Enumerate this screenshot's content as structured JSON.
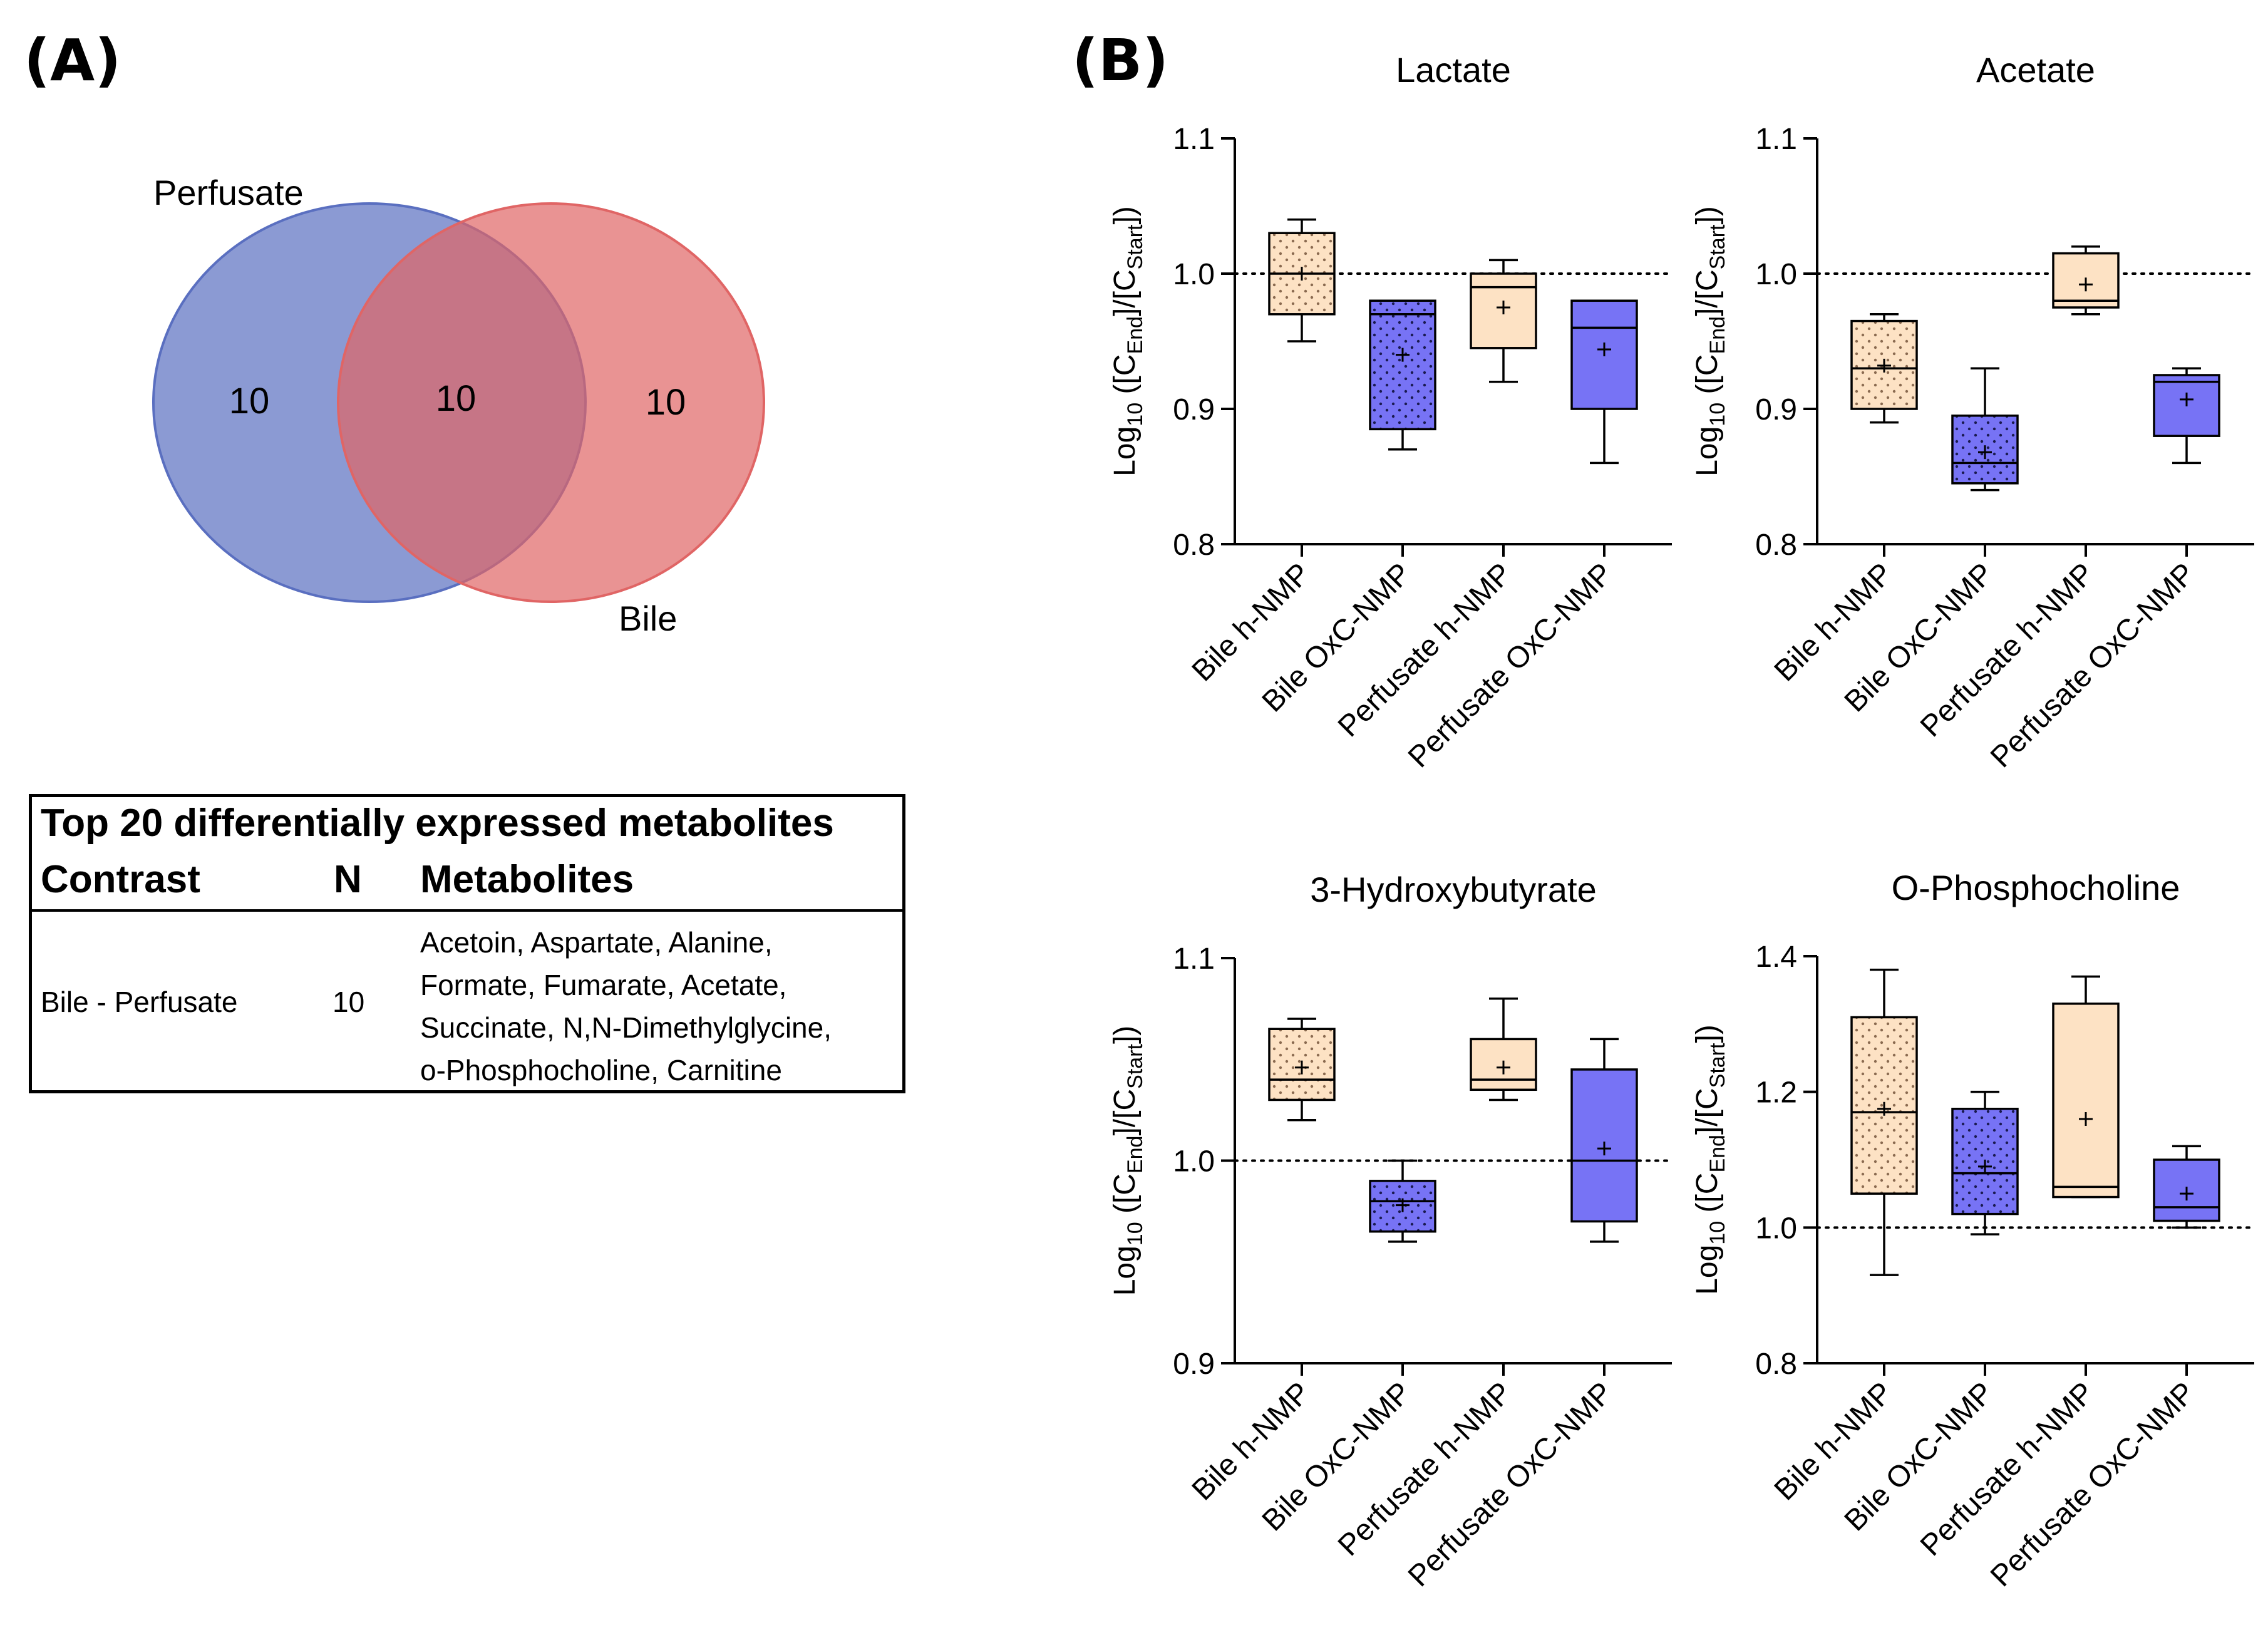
{
  "panel_a": {
    "label": "(A)",
    "venn": {
      "sets": [
        {
          "name": "Perfusate",
          "unique_count": "10",
          "color": "#5a6fc0"
        },
        {
          "name": "Bile",
          "unique_count": "10",
          "color": "#e06565"
        }
      ],
      "intersection_count": "10"
    },
    "table": {
      "title": "Top 20 differentially expressed metabolites",
      "headers": [
        "Contrast",
        "N",
        "Metabolites"
      ],
      "row": {
        "contrast": "Bile - Perfusate",
        "n": "10",
        "metabolite_lines": [
          "Acetoin, Aspartate, Alanine,",
          "Formate, Fumarate, Acetate,",
          "Succinate, N,N-Dimethylglycine,",
          "o-Phosphocholine, Carnitine"
        ]
      }
    }
  },
  "panel_b": {
    "label": "(B)",
    "ylabel": {
      "prefix": "Log",
      "base": "10",
      "mid1": " ([C",
      "sub1": "End",
      "mid2": "]/[C",
      "sub2": "Start",
      "end": "])"
    },
    "colors": {
      "peach": "#fde2c4",
      "blue": "#7773f5",
      "edge": "#000000"
    }
  },
  "chart_data": [
    {
      "type": "box",
      "title": "Lactate",
      "categories": [
        "Bile h-NMP",
        "Bile OxC-NMP",
        "Perfusate h-NMP",
        "Perfusate OxC-NMP"
      ],
      "ylim": [
        0.8,
        1.1
      ],
      "yticks": [
        0.8,
        0.9,
        1.0,
        1.1
      ],
      "ytick_labels": [
        "0.8",
        "0.9",
        "1.0",
        "1.1"
      ],
      "reference_line": 1.0,
      "boxes": [
        {
          "min": 0.95,
          "q1": 0.97,
          "median": 1.0,
          "q3": 1.03,
          "max": 1.04,
          "mean": 1.0,
          "color": "peach",
          "dotted": true
        },
        {
          "min": 0.87,
          "q1": 0.885,
          "median": 0.97,
          "q3": 0.98,
          "max": 0.98,
          "mean": 0.94,
          "color": "blue",
          "dotted": true
        },
        {
          "min": 0.92,
          "q1": 0.945,
          "median": 0.99,
          "q3": 1.0,
          "max": 1.01,
          "mean": 0.975,
          "color": "peach",
          "dotted": false
        },
        {
          "min": 0.86,
          "q1": 0.9,
          "median": 0.96,
          "q3": 0.98,
          "max": 0.98,
          "mean": 0.944,
          "color": "blue",
          "dotted": false
        }
      ]
    },
    {
      "type": "box",
      "title": "Acetate",
      "categories": [
        "Bile h-NMP",
        "Bile OxC-NMP",
        "Perfusate h-NMP",
        "Perfusate OxC-NMP"
      ],
      "ylim": [
        0.8,
        1.1
      ],
      "yticks": [
        0.8,
        0.9,
        1.0,
        1.1
      ],
      "ytick_labels": [
        "0.8",
        "0.9",
        "1.0",
        "1.1"
      ],
      "reference_line": 1.0,
      "boxes": [
        {
          "min": 0.89,
          "q1": 0.9,
          "median": 0.93,
          "q3": 0.965,
          "max": 0.97,
          "mean": 0.932,
          "color": "peach",
          "dotted": true
        },
        {
          "min": 0.84,
          "q1": 0.845,
          "median": 0.86,
          "q3": 0.895,
          "max": 0.93,
          "mean": 0.868,
          "color": "blue",
          "dotted": true
        },
        {
          "min": 0.97,
          "q1": 0.975,
          "median": 0.98,
          "q3": 1.015,
          "max": 1.02,
          "mean": 0.992,
          "color": "peach",
          "dotted": false
        },
        {
          "min": 0.86,
          "q1": 0.88,
          "median": 0.92,
          "q3": 0.925,
          "max": 0.93,
          "mean": 0.907,
          "color": "blue",
          "dotted": false
        }
      ]
    },
    {
      "type": "box",
      "title": "3-Hydroxybutyrate",
      "categories": [
        "Bile h-NMP",
        "Bile OxC-NMP",
        "Perfusate h-NMP",
        "Perfusate OxC-NMP"
      ],
      "ylim": [
        0.9,
        1.1
      ],
      "yticks": [
        0.9,
        1.0,
        1.1
      ],
      "ytick_labels": [
        "0.9",
        "1.0",
        "1.1"
      ],
      "reference_line": 1.0,
      "boxes": [
        {
          "min": 1.02,
          "q1": 1.03,
          "median": 1.04,
          "q3": 1.065,
          "max": 1.07,
          "mean": 1.046,
          "color": "peach",
          "dotted": true
        },
        {
          "min": 0.96,
          "q1": 0.965,
          "median": 0.98,
          "q3": 0.99,
          "max": 1.0,
          "mean": 0.978,
          "color": "blue",
          "dotted": true
        },
        {
          "min": 1.03,
          "q1": 1.035,
          "median": 1.04,
          "q3": 1.06,
          "max": 1.08,
          "mean": 1.046,
          "color": "peach",
          "dotted": false
        },
        {
          "min": 0.96,
          "q1": 0.97,
          "median": 1.0,
          "q3": 1.045,
          "max": 1.06,
          "mean": 1.006,
          "color": "blue",
          "dotted": false
        }
      ]
    },
    {
      "type": "box",
      "title": "O-Phosphocholine",
      "categories": [
        "Bile h-NMP",
        "Bile OxC-NMP",
        "Perfusate h-NMP",
        "Perfusate OxC-NMP"
      ],
      "ylim": [
        0.8,
        1.4
      ],
      "yticks": [
        0.8,
        1.0,
        1.2,
        1.4
      ],
      "ytick_labels": [
        "0.8",
        "1.0",
        "1.2",
        "1.4"
      ],
      "reference_line": 1.0,
      "boxes": [
        {
          "min": 0.93,
          "q1": 1.05,
          "median": 1.17,
          "q3": 1.31,
          "max": 1.38,
          "mean": 1.175,
          "color": "peach",
          "dotted": true
        },
        {
          "min": 0.99,
          "q1": 1.02,
          "median": 1.08,
          "q3": 1.175,
          "max": 1.2,
          "mean": 1.09,
          "color": "blue",
          "dotted": true
        },
        {
          "min": 1.045,
          "q1": 1.045,
          "median": 1.06,
          "q3": 1.33,
          "max": 1.37,
          "mean": 1.16,
          "color": "peach",
          "dotted": false
        },
        {
          "min": 1.0,
          "q1": 1.01,
          "median": 1.03,
          "q3": 1.1,
          "max": 1.12,
          "mean": 1.05,
          "color": "blue",
          "dotted": false
        }
      ]
    }
  ]
}
